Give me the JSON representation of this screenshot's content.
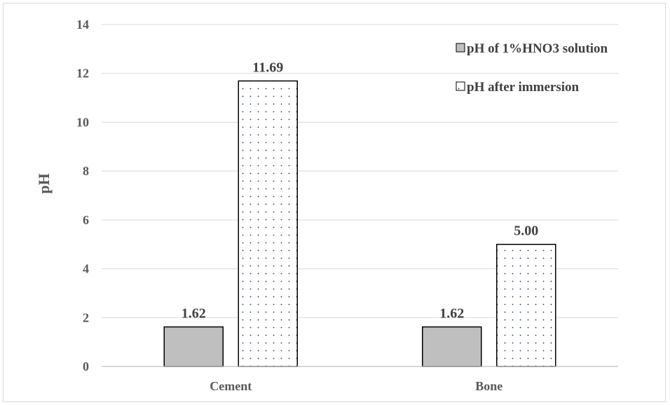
{
  "chart_data": {
    "type": "bar",
    "title": "",
    "xlabel": "",
    "ylabel": "pH",
    "ylim": [
      0,
      14
    ],
    "yticks": [
      0,
      2,
      4,
      6,
      8,
      10,
      12,
      14
    ],
    "grid": true,
    "legend_position": "top-right",
    "categories": [
      "Cement",
      "Bone"
    ],
    "series": [
      {
        "name": "pH of 1%HNO3 solution",
        "values": [
          1.62,
          1.62
        ],
        "value_labels": [
          "1.62",
          "1.62"
        ],
        "color": "#bfbfbf",
        "pattern": "solid"
      },
      {
        "name": "pH after immersion",
        "values": [
          11.69,
          5.0
        ],
        "value_labels": [
          "11.69",
          "5.00"
        ],
        "color": "#ffffff",
        "pattern": "dotted"
      }
    ]
  }
}
